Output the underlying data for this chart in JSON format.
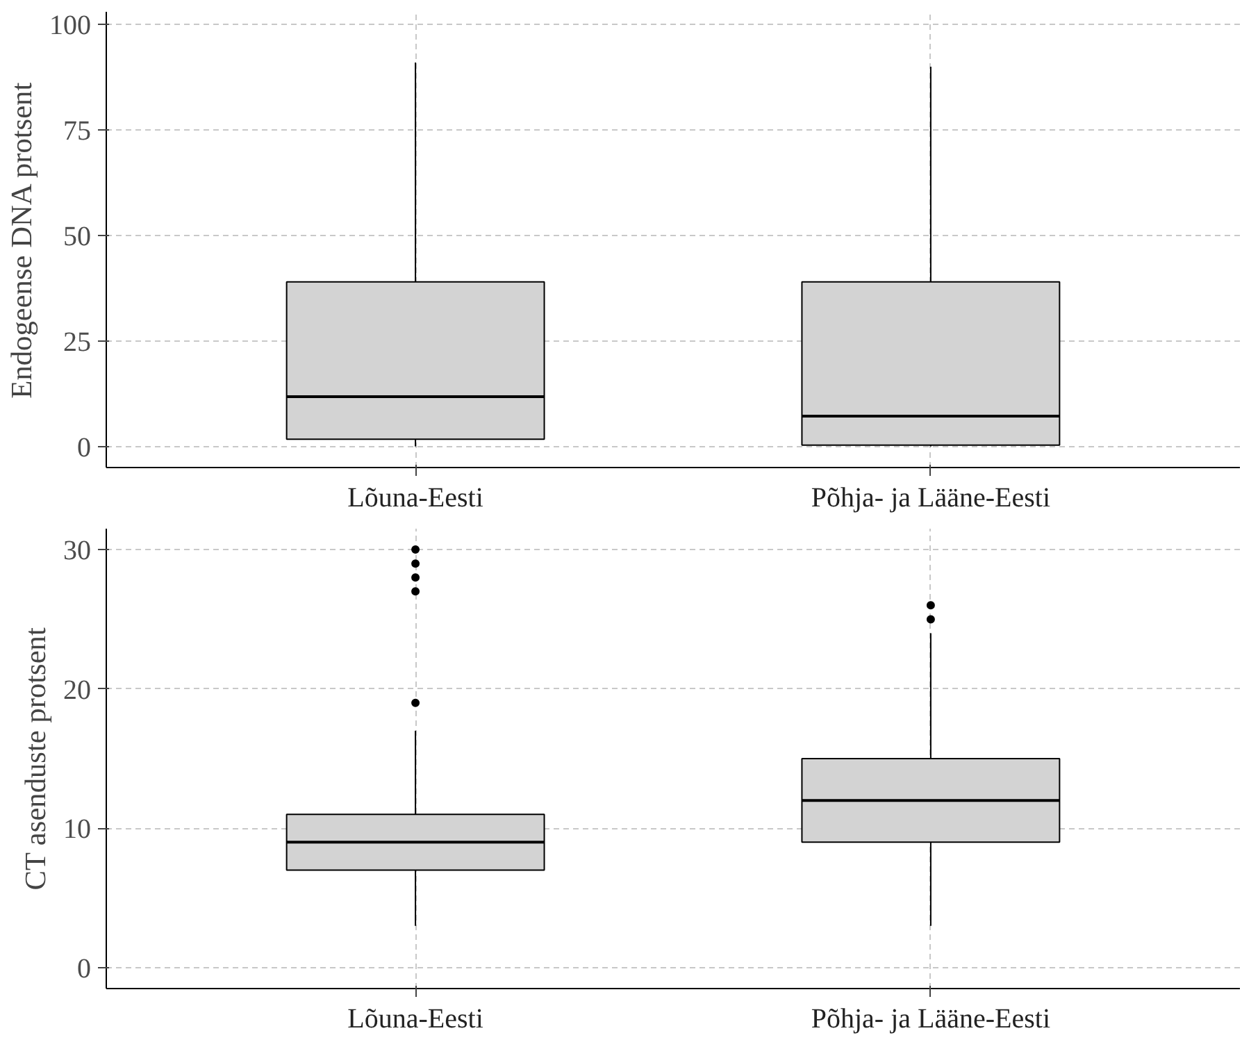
{
  "chart_data": [
    {
      "type": "box",
      "categories": [
        "Lõuna-Eesti",
        "Põhja- ja Lääne-Eesti"
      ],
      "ylabel": "Endogeense DNA protsent",
      "ylim": [
        -5,
        103
      ],
      "yticks": [
        0,
        25,
        50,
        75,
        100
      ],
      "grid": true,
      "series": [
        {
          "color": "#d3d3d3",
          "boxes": [
            {
              "low": 0,
              "q1": 1.7,
              "median": 11.8,
              "q3": 39,
              "high": 91
            },
            {
              "low": 0,
              "q1": 0.3,
              "median": 7.2,
              "q3": 39,
              "high": 90
            }
          ]
        }
      ]
    },
    {
      "type": "box",
      "categories": [
        "Lõuna-Eesti",
        "Põhja- ja Lääne-Eesti"
      ],
      "ylabel": "CT asenduste protsent",
      "ylim": [
        -1.5,
        31.5
      ],
      "yticks": [
        0,
        10,
        20,
        30
      ],
      "grid": true,
      "series": [
        {
          "color": "#d3d3d3",
          "boxes": [
            {
              "low": 3,
              "q1": 7,
              "median": 9,
              "q3": 11,
              "high": 17,
              "outliers": [
                19,
                27,
                28,
                29,
                30
              ]
            },
            {
              "low": 3,
              "q1": 9,
              "median": 12,
              "q3": 15,
              "high": 24,
              "outliers": [
                25,
                26
              ]
            }
          ]
        }
      ]
    }
  ]
}
